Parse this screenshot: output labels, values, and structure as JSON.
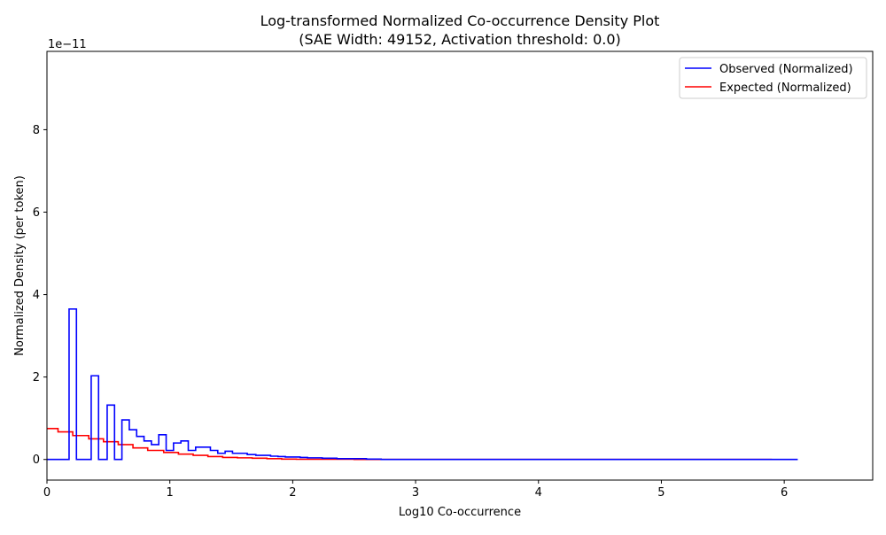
{
  "chart_data": {
    "type": "line",
    "title": "Log-transformed Normalized Co-occurrence Density Plot",
    "subtitle": "(SAE Width: 49152, Activation threshold: 0.0)",
    "xlabel": "Log10 Co-occurrence",
    "ylabel": "Normalized Density (per token)",
    "y_offset_label": "1e−11",
    "xlim": [
      0,
      6.72
    ],
    "ylim": [
      -0.5,
      9.9
    ],
    "x_ticks": [
      0,
      1,
      2,
      3,
      4,
      5,
      6
    ],
    "x_tick_labels": [
      "0",
      "1",
      "2",
      "3",
      "4",
      "5",
      "6"
    ],
    "y_ticks": [
      0,
      2,
      4,
      6,
      8
    ],
    "y_tick_labels": [
      "0",
      "2",
      "4",
      "6",
      "8"
    ],
    "legend_position": "top-right",
    "grid": false,
    "y_unit_multiplier": "1e-11",
    "series": [
      {
        "name": "Observed (Normalized)",
        "color": "#0000ff",
        "drawstyle": "steps-post",
        "x": [
          0,
          0.18,
          0.24,
          0.36,
          0.42,
          0.49,
          0.55,
          0.61,
          0.67,
          0.73,
          0.79,
          0.85,
          0.91,
          0.97,
          1.03,
          1.09,
          1.15,
          1.21,
          1.27,
          1.33,
          1.39,
          1.45,
          1.51,
          1.57,
          1.63,
          1.7,
          1.76,
          1.82,
          1.88,
          1.94,
          2.0,
          2.06,
          2.12,
          2.24,
          2.36,
          2.48,
          2.6,
          2.72,
          3.0,
          4.0,
          5.0,
          5.9,
          6.11
        ],
        "values": [
          0,
          3.65,
          0,
          2.03,
          0,
          1.32,
          0,
          0.96,
          0.72,
          0.56,
          0.45,
          0.36,
          0.6,
          0.22,
          0.4,
          0.45,
          0.22,
          0.3,
          0.3,
          0.22,
          0.15,
          0.2,
          0.15,
          0.15,
          0.12,
          0.1,
          0.1,
          0.08,
          0.07,
          0.06,
          0.06,
          0.05,
          0.04,
          0.03,
          0.02,
          0.02,
          0.01,
          0,
          0,
          0,
          0,
          0,
          0
        ]
      },
      {
        "name": "Expected (Normalized)",
        "color": "#ff0000",
        "drawstyle": "steps-post",
        "x": [
          0,
          0.09,
          0.21,
          0.34,
          0.46,
          0.58,
          0.7,
          0.82,
          0.95,
          1.07,
          1.19,
          1.31,
          1.43,
          1.55,
          1.67,
          1.79,
          1.91,
          2.03,
          2.5,
          3.0,
          4.0,
          5.0,
          5.9
        ],
        "values": [
          0.75,
          0.67,
          0.58,
          0.5,
          0.43,
          0.36,
          0.28,
          0.22,
          0.17,
          0.13,
          0.1,
          0.07,
          0.05,
          0.04,
          0.03,
          0.02,
          0.01,
          0.005,
          0.002,
          0,
          0,
          0,
          0
        ]
      }
    ]
  }
}
